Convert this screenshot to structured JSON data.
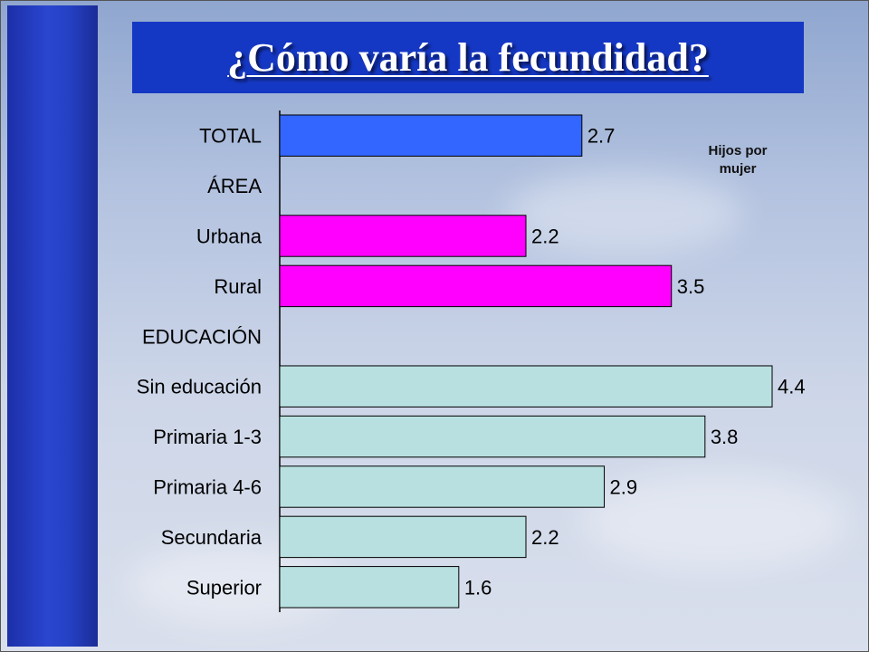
{
  "title": "¿Cómo varía la fecundidad?",
  "chart_data": {
    "type": "bar",
    "orientation": "horizontal",
    "title": "¿Cómo varía la fecundidad?",
    "unit_label": "Hijos por mujer",
    "xlim": [
      0,
      4.4
    ],
    "grid": false,
    "categories": [
      "TOTAL",
      "ÁREA",
      "Urbana",
      "Rural",
      "EDUCACIÓN",
      "Sin educación",
      "Primaria 1-3",
      "Primaria 4-6",
      "Secundaria",
      "Superior"
    ],
    "values": [
      2.7,
      null,
      2.2,
      3.5,
      null,
      4.4,
      3.8,
      2.9,
      2.2,
      1.6
    ],
    "value_labels": [
      "2.7",
      "",
      "2.2",
      "3.5",
      "",
      "4.4",
      "3.8",
      "2.9",
      "2.2",
      "1.6"
    ],
    "colors": [
      "#3366ff",
      null,
      "#ff00ff",
      "#ff00ff",
      null,
      "#b9e0e0",
      "#b9e0e0",
      "#b9e0e0",
      "#b9e0e0",
      "#b9e0e0"
    ]
  }
}
